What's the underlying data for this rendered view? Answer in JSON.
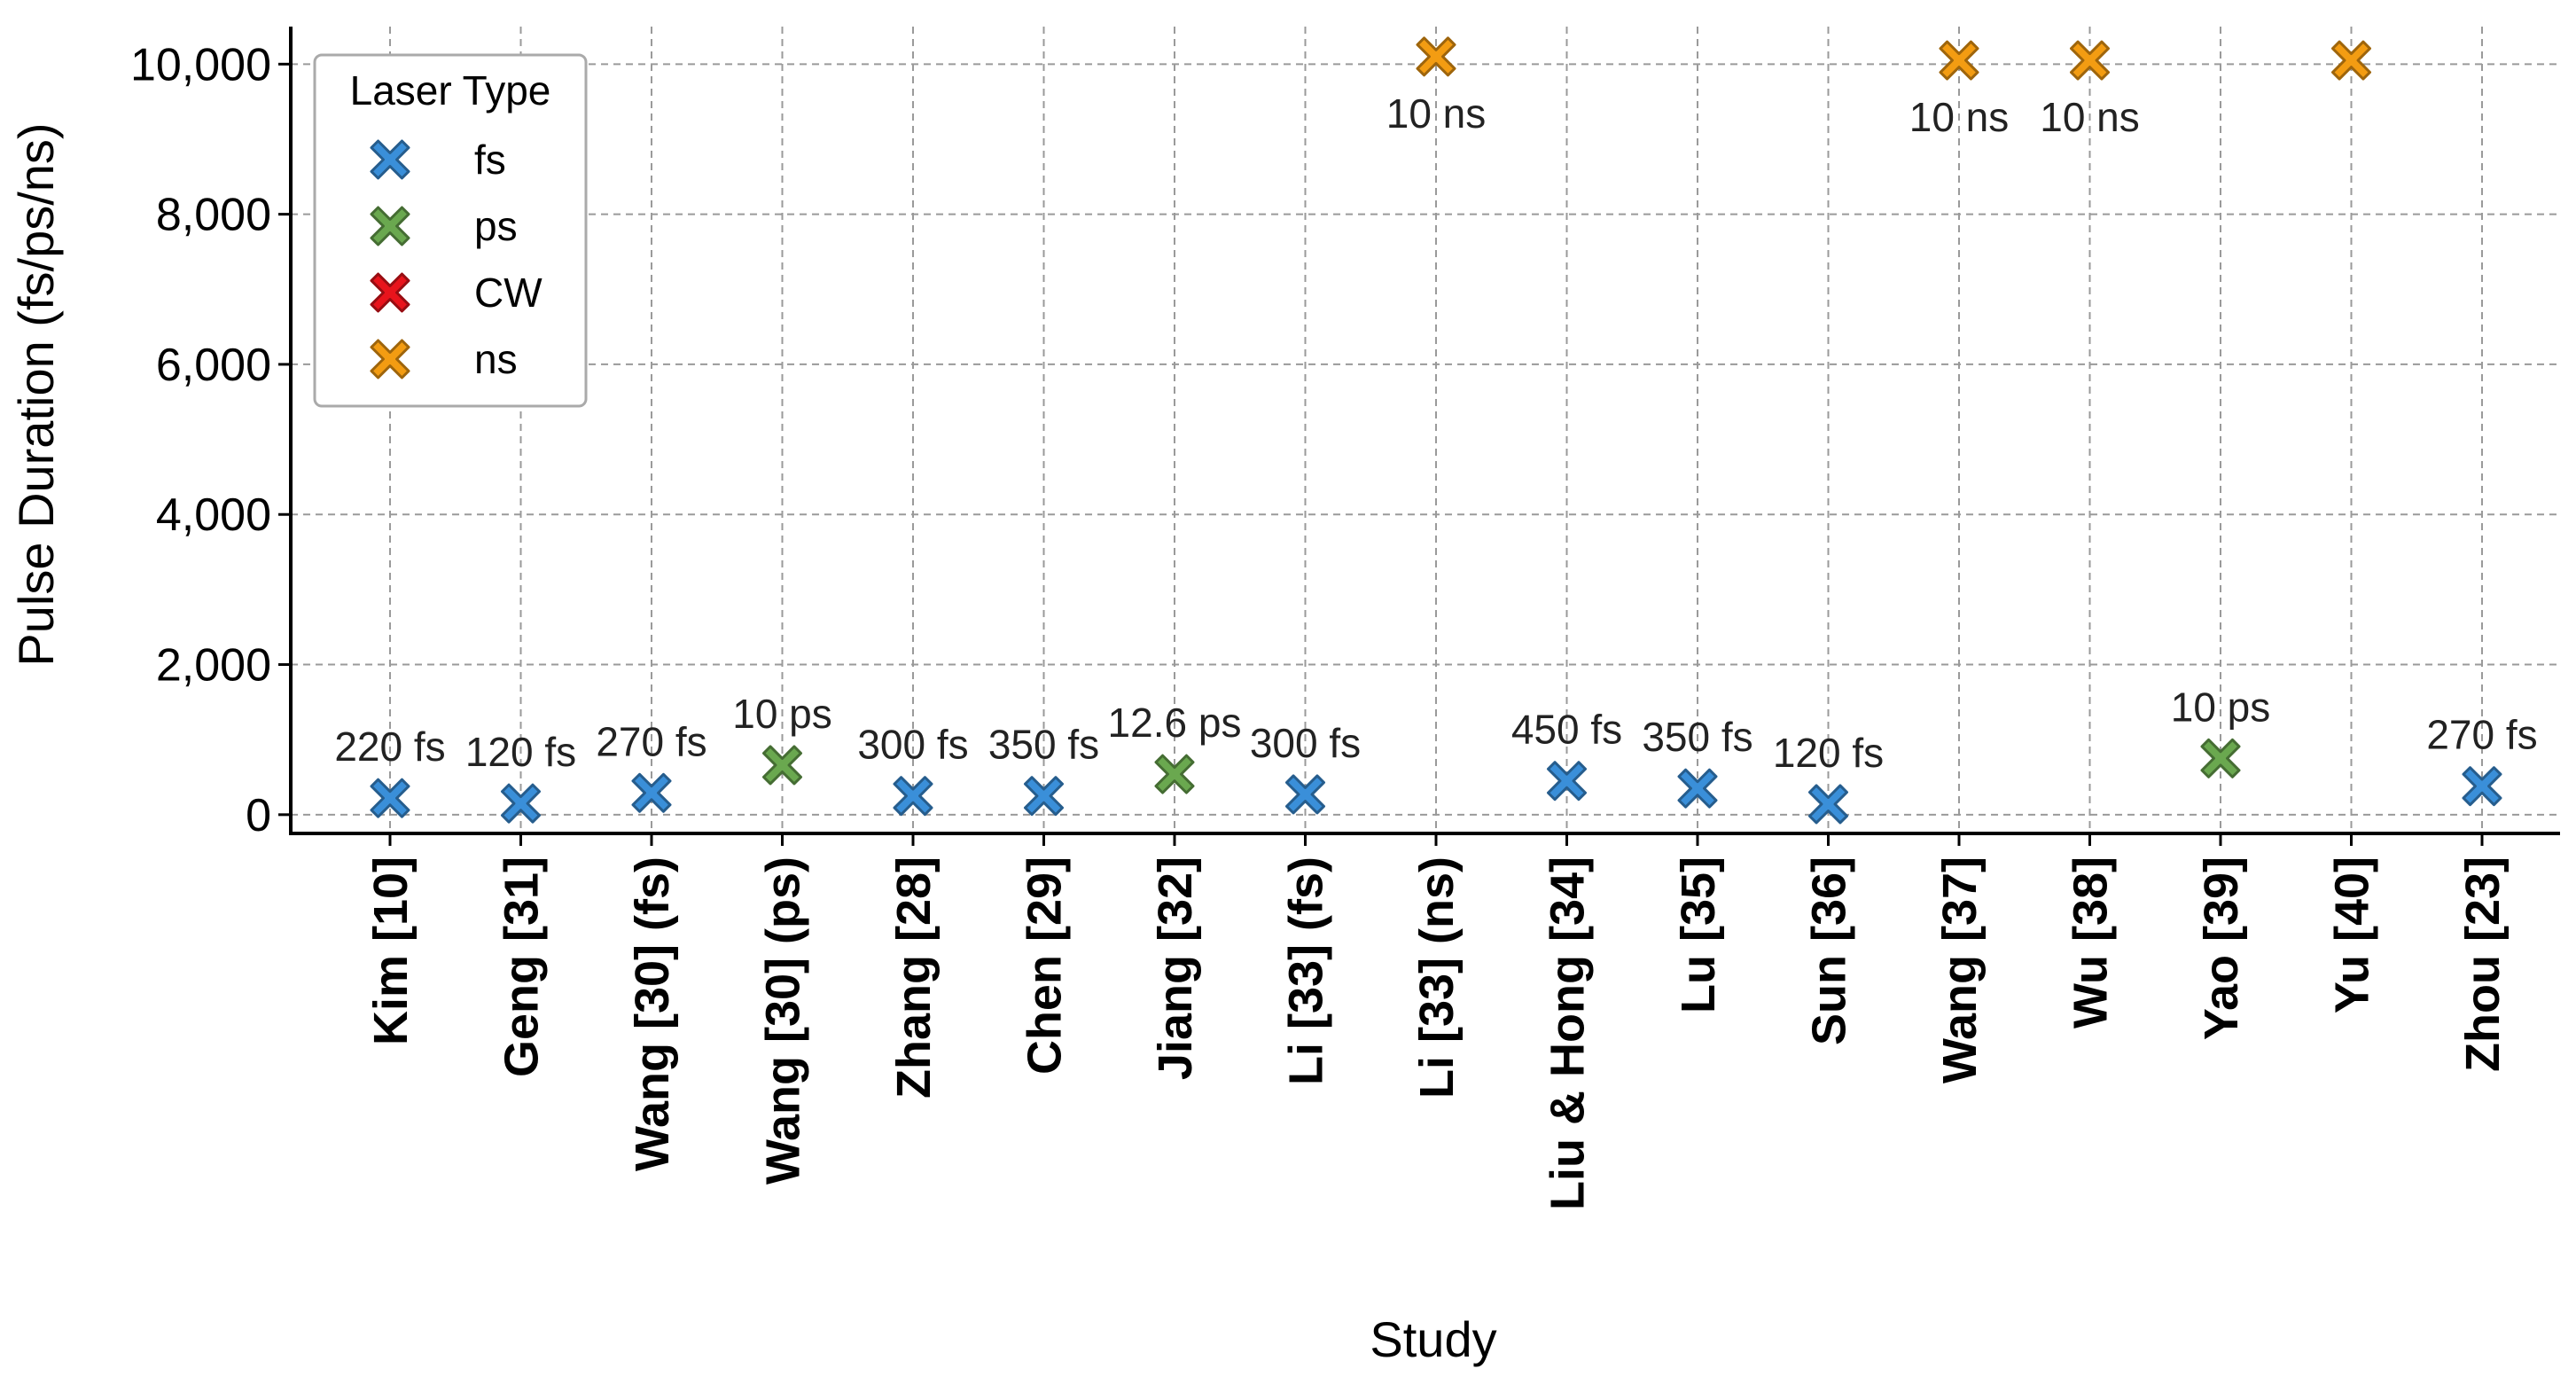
{
  "chart_data": {
    "type": "scatter",
    "title": "",
    "xlabel": "Study",
    "ylabel": "Pulse Duration (fs/ps/ns)",
    "ylim": [
      -250,
      10500
    ],
    "yticks": [
      0,
      2000,
      4000,
      6000,
      8000,
      10000
    ],
    "ytick_labels": [
      "0",
      "2,000",
      "4,000",
      "6,000",
      "8,000",
      "10,000"
    ],
    "grid": true,
    "legend": {
      "title": "Laser Type",
      "placement": "top-left",
      "entries": [
        {
          "name": "fs",
          "color": "#3a8fd9"
        },
        {
          "name": "ps",
          "color": "#6aa84f"
        },
        {
          "name": "CW",
          "color": "#e8141c"
        },
        {
          "name": "ns",
          "color": "#f39c12"
        }
      ]
    },
    "categories": [
      "Kim [10]",
      "Geng [31]",
      "Wang [30] (fs)",
      "Wang [30] (ps)",
      "Zhang [28]",
      "Chen [29]",
      "Jiang [32]",
      "Li [33] (fs)",
      "Li [33] (ns)",
      "Liu & Hong [34]",
      "Lu [35]",
      "Sun [36]",
      "Wang [37]",
      "Wu [38]",
      "Yao [39]",
      "Yu [40]",
      "Zhou [23]"
    ],
    "points": [
      {
        "category": "Kim [10]",
        "y": 220,
        "type": "fs",
        "label": "220 fs"
      },
      {
        "category": "Geng [31]",
        "y": 150,
        "type": "fs",
        "label": "120 fs"
      },
      {
        "category": "Wang [30] (fs)",
        "y": 290,
        "type": "fs",
        "label": "270 fs"
      },
      {
        "category": "Wang [30] (ps)",
        "y": 660,
        "type": "ps",
        "label": "10 ps"
      },
      {
        "category": "Zhang [28]",
        "y": 250,
        "type": "fs",
        "label": "300 fs"
      },
      {
        "category": "Chen [29]",
        "y": 250,
        "type": "fs",
        "label": "350 fs"
      },
      {
        "category": "Jiang [32]",
        "y": 540,
        "type": "ps",
        "label": "12.6 ps"
      },
      {
        "category": "Li [33] (fs)",
        "y": 270,
        "type": "fs",
        "label": "300 fs"
      },
      {
        "category": "Li [33] (ns)",
        "y": 10100,
        "type": "ns",
        "label": "10 ns"
      },
      {
        "category": "Liu & Hong [34]",
        "y": 450,
        "type": "fs",
        "label": "450 fs"
      },
      {
        "category": "Lu [35]",
        "y": 350,
        "type": "fs",
        "label": "350 fs"
      },
      {
        "category": "Sun [36]",
        "y": 140,
        "type": "fs",
        "label": "120 fs"
      },
      {
        "category": "Wang [37]",
        "y": 10050,
        "type": "ns",
        "label": "10 ns"
      },
      {
        "category": "Wu [38]",
        "y": 10050,
        "type": "ns",
        "label": "10 ns"
      },
      {
        "category": "Yao [39]",
        "y": 750,
        "type": "ps",
        "label": "10 ps"
      },
      {
        "category": "Yu [40]",
        "y": 10050,
        "type": "ns",
        "label": ""
      },
      {
        "category": "Zhou [23]",
        "y": 380,
        "type": "fs",
        "label": "270 fs"
      }
    ]
  }
}
